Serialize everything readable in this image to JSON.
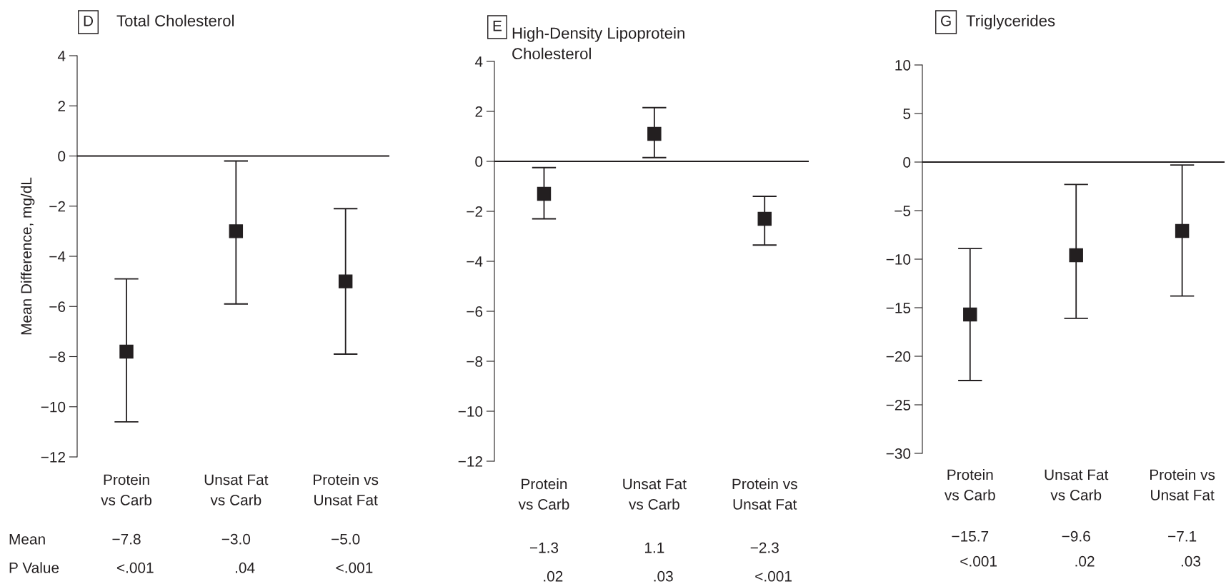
{
  "chart_data": [
    {
      "type": "scatter",
      "title": "Total Cholesterol",
      "ylabel": "Mean Difference, mg/dL",
      "categories": [
        "Protein\nvs Carb",
        "Unsat Fat\nvs Carb",
        "Protein vs\nUnsat Fat"
      ],
      "values": [
        -7.8,
        -3.0,
        -5.0
      ],
      "value_labels": [
        "−7.8",
        "−3.0",
        "−5.0"
      ],
      "errors": [
        [
          -10.6,
          -4.9
        ],
        [
          -5.9,
          -0.2
        ],
        [
          -7.9,
          -2.1
        ]
      ],
      "colors": [
        "#231f20",
        "#231f20",
        "#231f20"
      ],
      "marker": "square",
      "ylim": [
        -12,
        4
      ],
      "yticks": [
        -12,
        -10,
        -8,
        -6,
        -4,
        -2,
        0,
        2,
        4
      ],
      "ref_lines": [
        {
          "axis": "y",
          "value": 0,
          "color": "#231f20"
        }
      ],
      "grid": false,
      "legend": false,
      "annotations": [
        "D",
        "<.001",
        ".04",
        "<.001",
        "Mean",
        "P Value"
      ]
    },
    {
      "type": "scatter",
      "title": "High-Density Lipoprotein\nCholesterol",
      "categories": [
        "Protein\nvs Carb",
        "Unsat Fat\nvs Carb",
        "Protein vs\nUnsat Fat"
      ],
      "values": [
        -1.3,
        1.1,
        -2.3
      ],
      "value_labels": [
        "−1.3",
        "1.1",
        "−2.3"
      ],
      "errors": [
        [
          -2.3,
          -0.25
        ],
        [
          0.15,
          2.15
        ],
        [
          -3.35,
          -1.4
        ]
      ],
      "colors": [
        "#231f20",
        "#231f20",
        "#231f20"
      ],
      "marker": "square",
      "ylim": [
        -12,
        4
      ],
      "yticks": [
        -12,
        -10,
        -8,
        -6,
        -4,
        -2,
        0,
        2,
        4
      ],
      "ref_lines": [
        {
          "axis": "y",
          "value": 0,
          "color": "#231f20"
        }
      ],
      "grid": false,
      "legend": false,
      "annotations": [
        "E",
        ".02",
        ".03",
        "<.001"
      ]
    },
    {
      "type": "scatter",
      "title": "Triglycerides",
      "categories": [
        "Protein\nvs Carb",
        "Unsat Fat\nvs Carb",
        "Protein vs\nUnsat Fat"
      ],
      "values": [
        -15.7,
        -9.6,
        -7.1
      ],
      "value_labels": [
        "−15.7",
        "−9.6",
        "−7.1"
      ],
      "errors": [
        [
          -22.5,
          -8.9
        ],
        [
          -16.1,
          -2.3
        ],
        [
          -13.8,
          -0.3
        ]
      ],
      "colors": [
        "#231f20",
        "#231f20",
        "#231f20"
      ],
      "marker": "square",
      "ylim": [
        -30,
        10
      ],
      "yticks": [
        -30,
        -25,
        -20,
        -15,
        -10,
        -5,
        0,
        5,
        10
      ],
      "ref_lines": [
        {
          "axis": "y",
          "value": 0,
          "color": "#231f20"
        }
      ],
      "grid": false,
      "legend": false,
      "annotations": [
        "G",
        "<.001",
        ".02",
        ".03"
      ]
    }
  ]
}
